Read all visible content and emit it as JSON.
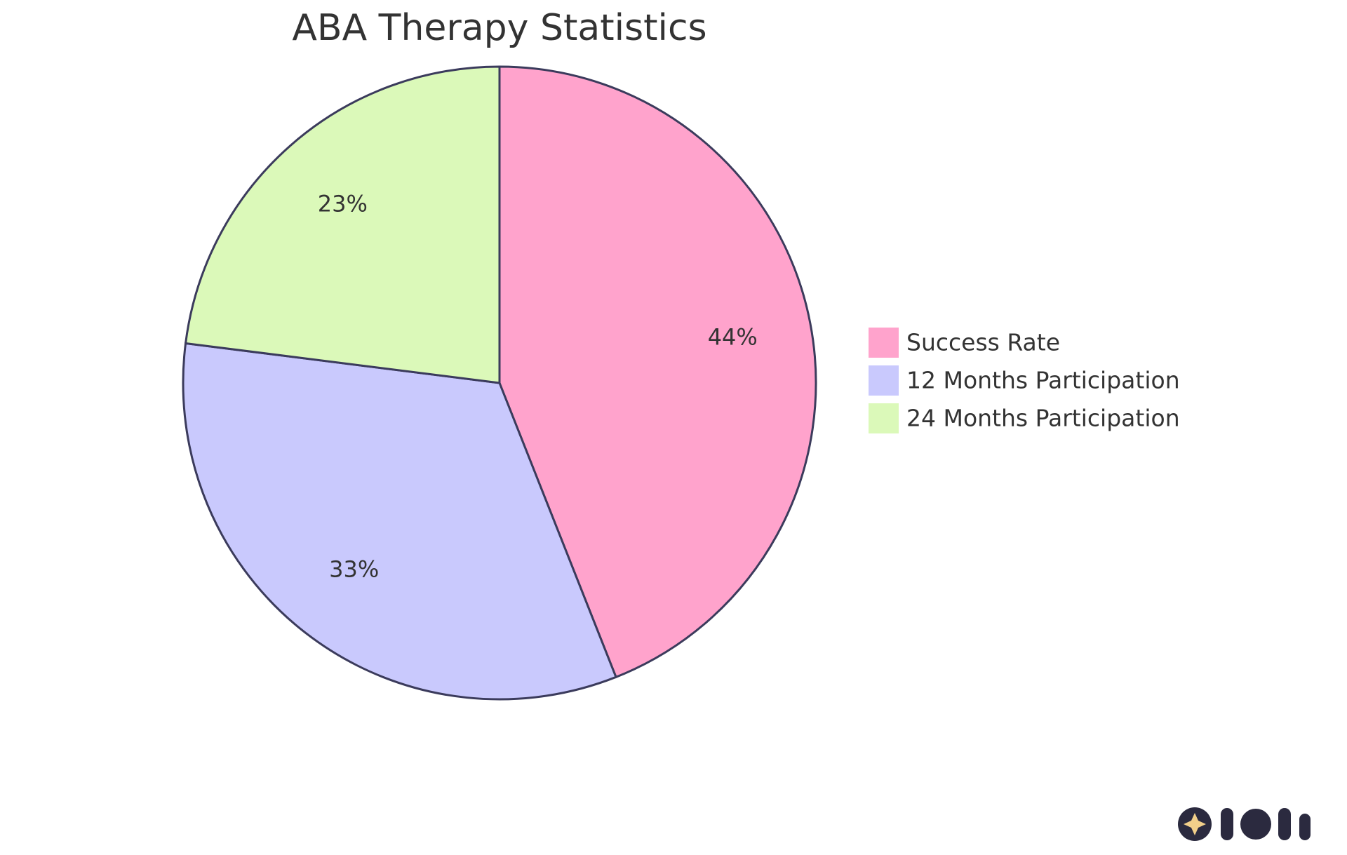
{
  "chart_data": {
    "type": "pie",
    "title": "ABA Therapy Statistics",
    "categories": [
      "Success Rate",
      "12 Months Participation",
      "24 Months Participation"
    ],
    "values": [
      44,
      33,
      23
    ],
    "value_labels": [
      "44%",
      "33%",
      "23%"
    ],
    "colors": [
      "#ffa3cc",
      "#c9c9fd",
      "#dbf9b9"
    ]
  }
}
